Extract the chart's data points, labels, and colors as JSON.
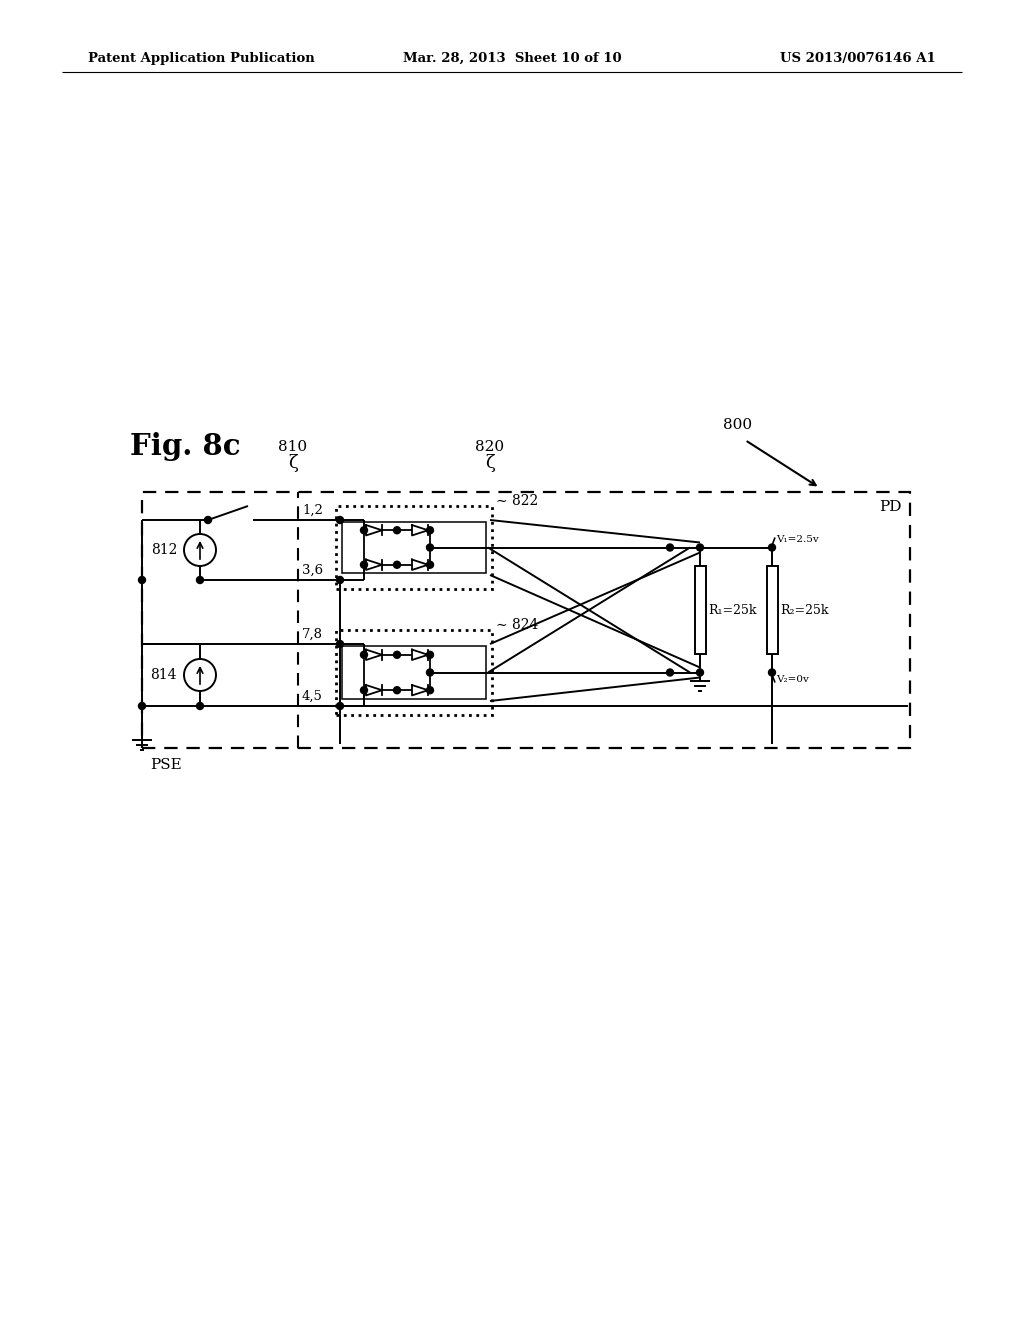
{
  "patent_header_left": "Patent Application Publication",
  "patent_header_mid": "Mar. 28, 2013  Sheet 10 of 10",
  "patent_header_right": "US 2013/0076146 A1",
  "background_color": "#ffffff",
  "fig_label": "Fig. 8c",
  "label_800": "800",
  "label_810": "810",
  "label_820": "820",
  "label_812": "812",
  "label_814": "814",
  "label_822": "822",
  "label_824": "824",
  "label_PSE": "PSE",
  "label_PD": "PD",
  "label_12": "1,2",
  "label_36": "3,6",
  "label_78": "7,8",
  "label_45": "4,5",
  "label_R1": "R₁=25k",
  "label_R2": "R₂=25k",
  "label_V1": "V₁=2.5v",
  "label_V2": "V₂=0v"
}
